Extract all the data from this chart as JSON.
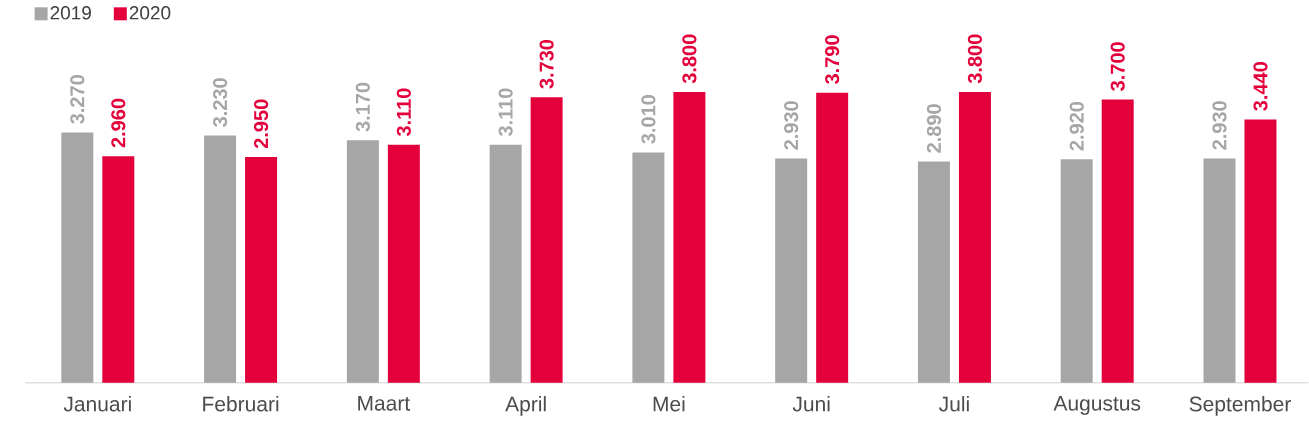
{
  "chart_data": {
    "type": "bar",
    "categories": [
      "Januari",
      "Februari",
      "Maart",
      "April",
      "Mei",
      "Juni",
      "Juli",
      "Augustus",
      "September"
    ],
    "series": [
      {
        "name": "2019",
        "color": "#a6a6a6",
        "values": [
          3270,
          3230,
          3170,
          3110,
          3010,
          2930,
          2890,
          2920,
          2930
        ],
        "value_labels": [
          "3.270",
          "3.230",
          "3.170",
          "3.110",
          "3.010",
          "2.930",
          "2.890",
          "2.920",
          "2.930"
        ]
      },
      {
        "name": "2020",
        "color": "#e4003b",
        "values": [
          2960,
          2950,
          3110,
          3730,
          3800,
          3790,
          3800,
          3700,
          3440
        ],
        "value_labels": [
          "2.960",
          "2.950",
          "3.110",
          "3.730",
          "3.800",
          "3.790",
          "3.800",
          "3.700",
          "3.440"
        ]
      }
    ],
    "legend": "top left"
  }
}
